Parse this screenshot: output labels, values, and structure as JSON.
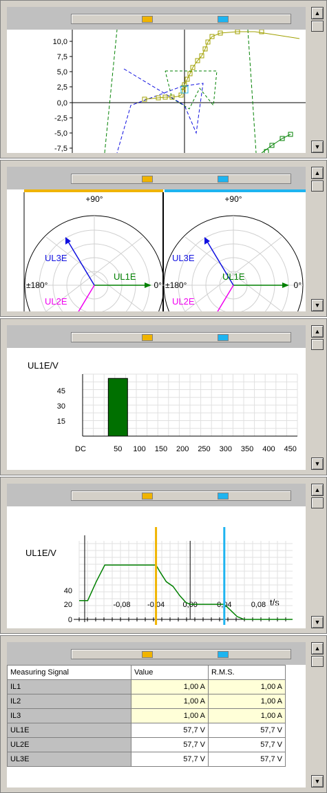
{
  "colors": {
    "cursor_a": "#f0b400",
    "cursor_b": "#1eb4f0",
    "green": "#008000",
    "olive": "#a0a000",
    "blue": "#1010e0",
    "magenta": "#f000f0"
  },
  "toolbar": {
    "marker_a_icon": "cursor-a-marker-icon",
    "marker_b_icon": "cursor-b-marker-icon"
  },
  "scrollbar": {
    "up_icon": "arrow-up-icon",
    "down_icon": "arrow-down-icon"
  },
  "panels": {
    "trajectory": {
      "y_ticks": [
        "10,0",
        "7,5",
        "5,0",
        "2,5",
        "0,0",
        "-2,5",
        "-5,0",
        "-7,5"
      ]
    },
    "phasor": {
      "left": {
        "top_label": "+90°",
        "left_label": "±180°",
        "right_label": "0°",
        "vectors": [
          {
            "name": "UL1E",
            "angle": 0,
            "magnitude": 57.7
          },
          {
            "name": "UL2E",
            "angle": -120,
            "magnitude": 57.7
          },
          {
            "name": "UL3E",
            "angle": 120,
            "magnitude": 57.7
          }
        ]
      },
      "right": {
        "top_label": "+90°",
        "left_label": "±180°",
        "right_label": "0°",
        "vectors": [
          {
            "name": "UL1E",
            "angle": 0,
            "magnitude": 57.7
          },
          {
            "name": "UL2E",
            "angle": -120,
            "magnitude": 57.7
          },
          {
            "name": "UL3E",
            "angle": 120,
            "magnitude": 57.7
          }
        ]
      }
    },
    "harmonics": {
      "chart_data": {
        "type": "bar",
        "ylabel": "UL1E/V",
        "y_ticks": [
          "45",
          "30",
          "15"
        ],
        "categories": [
          "DC",
          "50",
          "100",
          "150",
          "200",
          "250",
          "300",
          "350",
          "400",
          "450"
        ],
        "values": [
          0,
          57.7,
          0,
          0,
          0,
          0,
          0,
          0,
          0,
          0
        ],
        "ylim": [
          0,
          62
        ]
      }
    },
    "time": {
      "chart_data": {
        "type": "line",
        "ylabel": "UL1E/V",
        "xlabel": "t/s",
        "y_ticks": [
          "40",
          "20",
          "0"
        ],
        "x_ticks": [
          "-0,08",
          "-0,04",
          "0,00",
          "0,04",
          "0,08"
        ],
        "xlim": [
          -0.13,
          0.12
        ],
        "ylim": [
          0,
          60
        ],
        "x": [
          -0.13,
          -0.12,
          -0.11,
          -0.1,
          -0.09,
          -0.04,
          -0.035,
          -0.028,
          -0.02,
          -0.012,
          -0.005,
          0.0,
          0.04,
          0.047,
          0.055,
          0.063,
          0.12
        ],
        "y": [
          20,
          20,
          40,
          57.7,
          57.7,
          57.7,
          50,
          40,
          35,
          25,
          18,
          16,
          16,
          10,
          3,
          0,
          0
        ],
        "cursor_a_x": -0.04,
        "cursor_b_x": 0.04
      }
    },
    "table": {
      "headers": {
        "signal": "Measuring Signal",
        "value": "Value",
        "rms": "R.M.S."
      },
      "rows": [
        {
          "name": "IL1",
          "value": "1,00  A",
          "rms": "1,00  A"
        },
        {
          "name": "IL2",
          "value": "1,00  A",
          "rms": "1,00  A"
        },
        {
          "name": "IL3",
          "value": "1,00  A",
          "rms": "1,00  A"
        },
        {
          "name": "UL1E",
          "value": "57,7  V",
          "rms": "57,7  V"
        },
        {
          "name": "UL2E",
          "value": "57,7  V",
          "rms": "57,7  V"
        },
        {
          "name": "UL3E",
          "value": "57,7  V",
          "rms": "57,7  V"
        }
      ]
    }
  }
}
